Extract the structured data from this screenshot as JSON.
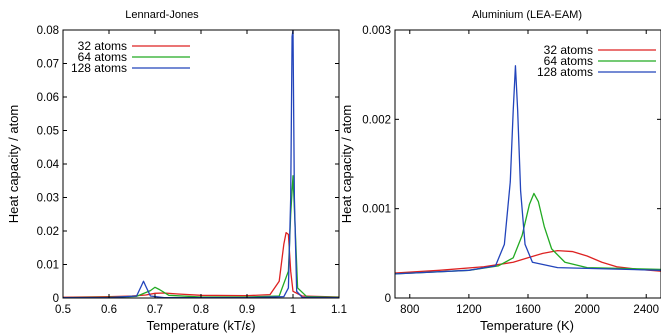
{
  "chart_data": [
    {
      "type": "line",
      "title": "Lennard-Jones",
      "xlabel": "Temperature (kT/ε)",
      "ylabel": "Heat capacity / atom",
      "xlim": [
        0.5,
        1.1
      ],
      "ylim": [
        0,
        0.08
      ],
      "x_ticks": [
        0.5,
        0.6,
        0.7,
        0.8,
        0.9,
        1.0,
        1.1
      ],
      "x_tick_labels": [
        "0.5",
        "0.6",
        "0.7",
        "0.8",
        "0.9",
        "1",
        "1.1"
      ],
      "y_ticks": [
        0,
        0.01,
        0.02,
        0.03,
        0.04,
        0.05,
        0.06,
        0.07,
        0.08
      ],
      "y_tick_labels": [
        "0",
        "0.01",
        "0.02",
        "0.03",
        "0.04",
        "0.05",
        "0.06",
        "0.07",
        "0.08"
      ],
      "grid": false,
      "legend_position": "top-left",
      "series": [
        {
          "name": "32 atoms",
          "color": "#dd2222",
          "points": [
            [
              0.5,
              0.0002
            ],
            [
              0.6,
              0.0004
            ],
            [
              0.65,
              0.0006
            ],
            [
              0.68,
              0.0009
            ],
            [
              0.7,
              0.0014
            ],
            [
              0.72,
              0.0015
            ],
            [
              0.75,
              0.0012
            ],
            [
              0.8,
              0.0008
            ],
            [
              0.9,
              0.0007
            ],
            [
              0.95,
              0.001
            ],
            [
              0.97,
              0.005
            ],
            [
              0.98,
              0.016
            ],
            [
              0.985,
              0.0195
            ],
            [
              0.99,
              0.019
            ],
            [
              0.995,
              0.008
            ],
            [
              1.0,
              0.002
            ],
            [
              1.02,
              0.0006
            ],
            [
              1.1,
              0.0003
            ]
          ]
        },
        {
          "name": "64 atoms",
          "color": "#22aa22",
          "points": [
            [
              0.5,
              0.0001
            ],
            [
              0.6,
              0.0002
            ],
            [
              0.66,
              0.0005
            ],
            [
              0.69,
              0.0022
            ],
            [
              0.7,
              0.0032
            ],
            [
              0.71,
              0.0025
            ],
            [
              0.73,
              0.0008
            ],
            [
              0.8,
              0.0003
            ],
            [
              0.9,
              0.0003
            ],
            [
              0.97,
              0.0006
            ],
            [
              0.99,
              0.008
            ],
            [
              0.995,
              0.025
            ],
            [
              1.0,
              0.0365
            ],
            [
              1.005,
              0.02
            ],
            [
              1.01,
              0.003
            ],
            [
              1.03,
              0.0004
            ],
            [
              1.1,
              0.0002
            ]
          ]
        },
        {
          "name": "128 atoms",
          "color": "#2244bb",
          "points": [
            [
              0.5,
              0.0001
            ],
            [
              0.6,
              0.0001
            ],
            [
              0.66,
              0.0006
            ],
            [
              0.67,
              0.0035
            ],
            [
              0.675,
              0.005
            ],
            [
              0.68,
              0.0035
            ],
            [
              0.69,
              0.0006
            ],
            [
              0.72,
              0.0001
            ],
            [
              0.9,
              0.0001
            ],
            [
              0.98,
              0.0004
            ],
            [
              0.99,
              0.003
            ],
            [
              0.995,
              0.03
            ],
            [
              0.998,
              0.078
            ],
            [
              1.0,
              0.08
            ],
            [
              1.003,
              0.03
            ],
            [
              1.008,
              0.002
            ],
            [
              1.02,
              0.0002
            ],
            [
              1.1,
              0.0001
            ]
          ]
        }
      ]
    },
    {
      "type": "line",
      "title": "Aluminium (LEA-EAM)",
      "xlabel": "Temperature (K)",
      "ylabel": "Heat capacity / atom",
      "xlim": [
        700,
        2500
      ],
      "ylim": [
        0,
        0.003
      ],
      "x_ticks": [
        800,
        1200,
        1600,
        2000,
        2400
      ],
      "x_tick_labels": [
        "800",
        "1200",
        "1600",
        "2000",
        "2400"
      ],
      "y_ticks": [
        0,
        0.001,
        0.002,
        0.003
      ],
      "y_tick_labels": [
        "0",
        "0.001",
        "0.002",
        "0.003"
      ],
      "grid": false,
      "legend_position": "top-right",
      "series": [
        {
          "name": "32 atoms",
          "color": "#dd2222",
          "points": [
            [
              700,
              0.00028
            ],
            [
              1000,
              0.00031
            ],
            [
              1300,
              0.00035
            ],
            [
              1500,
              0.0004
            ],
            [
              1600,
              0.00045
            ],
            [
              1700,
              0.0005
            ],
            [
              1800,
              0.00053
            ],
            [
              1900,
              0.00052
            ],
            [
              2000,
              0.00047
            ],
            [
              2100,
              0.0004
            ],
            [
              2200,
              0.00035
            ],
            [
              2350,
              0.00032
            ],
            [
              2500,
              0.0003
            ]
          ]
        },
        {
          "name": "64 atoms",
          "color": "#22aa22",
          "points": [
            [
              700,
              0.00027
            ],
            [
              1200,
              0.00031
            ],
            [
              1400,
              0.00036
            ],
            [
              1500,
              0.00045
            ],
            [
              1560,
              0.0007
            ],
            [
              1610,
              0.00105
            ],
            [
              1640,
              0.00117
            ],
            [
              1670,
              0.00108
            ],
            [
              1710,
              0.0008
            ],
            [
              1760,
              0.00055
            ],
            [
              1850,
              0.0004
            ],
            [
              2000,
              0.00034
            ],
            [
              2500,
              0.00032
            ]
          ]
        },
        {
          "name": "128 atoms",
          "color": "#2244bb",
          "points": [
            [
              700,
              0.00027
            ],
            [
              1200,
              0.00031
            ],
            [
              1380,
              0.00036
            ],
            [
              1440,
              0.0006
            ],
            [
              1480,
              0.0013
            ],
            [
              1500,
              0.0021
            ],
            [
              1515,
              0.0026
            ],
            [
              1530,
              0.0021
            ],
            [
              1550,
              0.0012
            ],
            [
              1580,
              0.0006
            ],
            [
              1630,
              0.0004
            ],
            [
              1800,
              0.00034
            ],
            [
              2500,
              0.00031
            ]
          ]
        }
      ]
    }
  ]
}
